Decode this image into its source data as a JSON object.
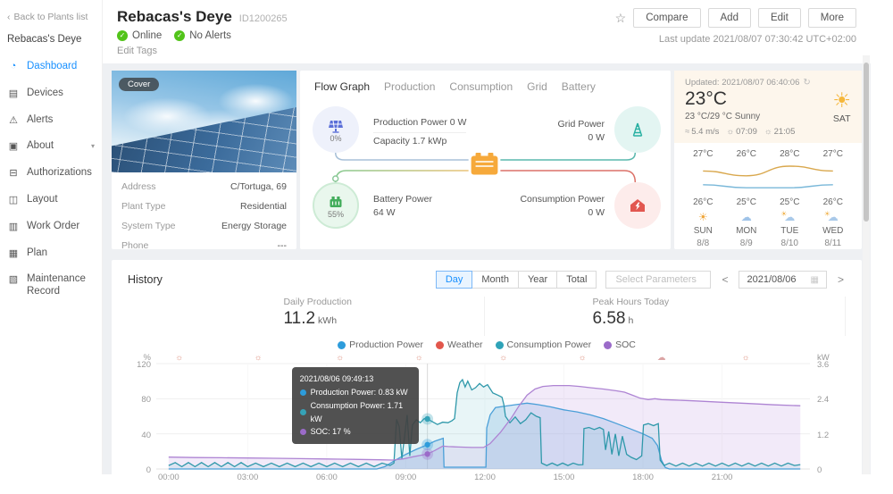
{
  "sidebar": {
    "back": "Back to Plants list",
    "plant_name": "Rebacas's Deye",
    "items": [
      {
        "label": "Dashboard",
        "icon": "dashboard-icon",
        "glyph": "◔",
        "active": true
      },
      {
        "label": "Devices",
        "icon": "devices-icon",
        "glyph": "▤"
      },
      {
        "label": "Alerts",
        "icon": "alerts-icon",
        "glyph": "⚠"
      },
      {
        "label": "About",
        "icon": "about-icon",
        "glyph": "▣",
        "caret": true
      },
      {
        "label": "Authorizations",
        "icon": "authorizations-icon",
        "glyph": "⊟"
      },
      {
        "label": "Layout",
        "icon": "layout-icon",
        "glyph": "◫"
      },
      {
        "label": "Work Order",
        "icon": "work-order-icon",
        "glyph": "▥"
      },
      {
        "label": "Plan",
        "icon": "plan-icon",
        "glyph": "▦"
      },
      {
        "label": "Maintenance Record",
        "icon": "maintenance-record-icon",
        "glyph": "▧"
      }
    ]
  },
  "header": {
    "title": "Rebacas's Deye",
    "id": "ID1200265",
    "status": [
      "Online",
      "No Alerts"
    ],
    "edit_tags": "Edit Tags",
    "buttons": [
      "Compare",
      "Add",
      "Edit",
      "More"
    ],
    "last_update": "Last update 2021/08/07 07:30:42 UTC+02:00"
  },
  "info_card": {
    "cover_badge": "Cover",
    "rows": [
      {
        "label": "Address",
        "value": "C/Tortuga, 69"
      },
      {
        "label": "Plant Type",
        "value": "Residential"
      },
      {
        "label": "System Type",
        "value": "Energy Storage"
      },
      {
        "label": "Phone",
        "value": "---"
      }
    ]
  },
  "flow": {
    "tabs": [
      {
        "label": "Flow Graph",
        "active": true
      },
      {
        "label": "Production"
      },
      {
        "label": "Consumption"
      },
      {
        "label": "Grid"
      },
      {
        "label": "Battery"
      }
    ],
    "production": {
      "line1": "Production Power 0 W",
      "line2": "Capacity 1.7 kWp",
      "percent": "0%"
    },
    "grid": {
      "label": "Grid Power",
      "value": "0 W"
    },
    "battery": {
      "label": "Battery Power",
      "value": "64 W",
      "percent": "55%"
    },
    "consumption": {
      "label": "Consumption Power",
      "value": "0 W"
    }
  },
  "weather": {
    "updated": "Updated: 2021/08/07 06:40:06",
    "temp": "23°C",
    "range": "23 °C/29 °C Sunny",
    "day": "SAT",
    "wind": "5.4 m/s",
    "sunrise": "07:09",
    "sunset": "21:05",
    "forecast": [
      {
        "high": "27°C",
        "low": "26°C",
        "day": "SUN",
        "date": "8/8",
        "icon": "sun"
      },
      {
        "high": "26°C",
        "low": "25°C",
        "day": "MON",
        "date": "8/9",
        "icon": "rain"
      },
      {
        "high": "28°C",
        "low": "25°C",
        "day": "TUE",
        "date": "8/10",
        "icon": "partly-cloudy"
      },
      {
        "high": "27°C",
        "low": "26°C",
        "day": "WED",
        "date": "8/11",
        "icon": "partly-cloudy"
      }
    ],
    "curve_high": [
      27,
      26,
      28,
      27
    ],
    "curve_low": [
      26,
      25,
      25,
      26
    ]
  },
  "history": {
    "title": "History",
    "range_tabs": [
      {
        "label": "Day",
        "active": true
      },
      {
        "label": "Month"
      },
      {
        "label": "Year"
      },
      {
        "label": "Total"
      }
    ],
    "select_parameters": "Select Parameters",
    "date": "2021/08/06",
    "stats": [
      {
        "label": "Daily Production",
        "value": "11.2",
        "unit": "kWh"
      },
      {
        "label": "Peak Hours Today",
        "value": "6.58",
        "unit": "h"
      }
    ],
    "legend": [
      {
        "label": "Production Power",
        "color": "#2D9CDB"
      },
      {
        "label": "Weather",
        "color": "#E2574C"
      },
      {
        "label": "Consumption Power",
        "color": "#2FA3B8"
      },
      {
        "label": "SOC",
        "color": "#9B6BC9"
      }
    ]
  },
  "chart_data": {
    "type": "line",
    "title": "History - Day view 2021/08/06",
    "xticks": [
      "00:00",
      "03:00",
      "06:00",
      "09:00",
      "12:00",
      "15:00",
      "18:00",
      "21:00"
    ],
    "xtick_hours": [
      0,
      3,
      6,
      9,
      12,
      15,
      18,
      21
    ],
    "left_axis": {
      "label": "%",
      "ticks": [
        120,
        80,
        40,
        0
      ],
      "max": 120
    },
    "right_axis": {
      "label": "kW",
      "ticks": [
        "3.6",
        "2.4",
        "1.2",
        "0"
      ],
      "max": 3.6
    },
    "weather_icons": [
      {
        "t": 0.4,
        "type": "sun"
      },
      {
        "t": 3.4,
        "type": "sun"
      },
      {
        "t": 6.5,
        "type": "sun"
      },
      {
        "t": 9.5,
        "type": "sun"
      },
      {
        "t": 12.7,
        "type": "sun"
      },
      {
        "t": 15.7,
        "type": "sun"
      },
      {
        "t": 18.7,
        "type": "cloud"
      },
      {
        "t": 21.9,
        "type": "sun"
      }
    ],
    "series": [
      {
        "name": "Production Power",
        "unit": "kW",
        "axis": "right",
        "color": "#4A9FD8",
        "fill": "rgba(120,175,225,0.28)",
        "points": [
          [
            0,
            0
          ],
          [
            7.9,
            0
          ],
          [
            8.2,
            0.08
          ],
          [
            8.6,
            0.3
          ],
          [
            9,
            0.5
          ],
          [
            9.4,
            0.67
          ],
          [
            9.82,
            0.83
          ],
          [
            10.1,
            0.95
          ],
          [
            10.42,
            1.05
          ],
          [
            10.45,
            0.06
          ],
          [
            11.5,
            0.06
          ],
          [
            12.04,
            0.06
          ],
          [
            12.07,
            1.4
          ],
          [
            12.2,
            1.85
          ],
          [
            12.4,
            2.1
          ],
          [
            12.8,
            2.15
          ],
          [
            13.2,
            2.2
          ],
          [
            13.6,
            2.25
          ],
          [
            14,
            2.2
          ],
          [
            14.5,
            2.12
          ],
          [
            15,
            2.02
          ],
          [
            15.5,
            1.95
          ],
          [
            16,
            1.85
          ],
          [
            16.5,
            1.72
          ],
          [
            17,
            1.55
          ],
          [
            17.5,
            1.38
          ],
          [
            18,
            1.2
          ],
          [
            18.35,
            1.05
          ],
          [
            18.55,
            0.8
          ],
          [
            18.7,
            0.3
          ],
          [
            18.85,
            0.05
          ],
          [
            19,
            0
          ],
          [
            23.97,
            0
          ]
        ]
      },
      {
        "name": "Consumption Power",
        "unit": "kW",
        "axis": "right",
        "color": "#2E98AA",
        "fill": "rgba(110,190,205,0.16)",
        "points": [
          [
            0,
            0.12
          ],
          [
            0.25,
            0.22
          ],
          [
            0.5,
            0.08
          ],
          [
            0.75,
            0.22
          ],
          [
            1,
            0.08
          ],
          [
            1.25,
            0.22
          ],
          [
            1.5,
            0.08
          ],
          [
            1.75,
            0.22
          ],
          [
            2,
            0.08
          ],
          [
            2.25,
            0.22
          ],
          [
            2.5,
            0.08
          ],
          [
            2.75,
            0.22
          ],
          [
            3,
            0.08
          ],
          [
            3.3,
            0.2
          ],
          [
            3.6,
            0.08
          ],
          [
            3.9,
            0.2
          ],
          [
            4.2,
            0.08
          ],
          [
            4.5,
            0.2
          ],
          [
            4.8,
            0.08
          ],
          [
            5.1,
            0.2
          ],
          [
            5.4,
            0.08
          ],
          [
            5.7,
            0.2
          ],
          [
            6,
            0.08
          ],
          [
            6.3,
            0.2
          ],
          [
            6.6,
            0.08
          ],
          [
            6.9,
            0.2
          ],
          [
            7.2,
            0.08
          ],
          [
            7.5,
            0.2
          ],
          [
            7.8,
            0.08
          ],
          [
            8.1,
            0.2
          ],
          [
            8.4,
            0.12
          ],
          [
            8.55,
            0.2
          ],
          [
            8.65,
            1.7
          ],
          [
            8.75,
            1.45
          ],
          [
            8.85,
            0.35
          ],
          [
            8.95,
            1.1
          ],
          [
            9.05,
            1.85
          ],
          [
            9.15,
            0.45
          ],
          [
            9.25,
            1.5
          ],
          [
            9.4,
            1.68
          ],
          [
            9.55,
            1.58
          ],
          [
            9.7,
            1.72
          ],
          [
            9.82,
            1.71
          ],
          [
            10,
            1.62
          ],
          [
            10.2,
            1.52
          ],
          [
            10.4,
            1.6
          ],
          [
            10.6,
            1.58
          ],
          [
            10.75,
            1.65
          ],
          [
            10.85,
            1.72
          ],
          [
            10.95,
            2.6
          ],
          [
            11.05,
            2.95
          ],
          [
            11.15,
            3.05
          ],
          [
            11.25,
            2.8
          ],
          [
            11.35,
            3
          ],
          [
            11.5,
            2.7
          ],
          [
            11.65,
            2.78
          ],
          [
            11.8,
            2.92
          ],
          [
            11.95,
            2.8
          ],
          [
            12.1,
            2.88
          ],
          [
            12.3,
            2.6
          ],
          [
            12.5,
            2.52
          ],
          [
            12.65,
            2.45
          ],
          [
            12.72,
            2.2
          ],
          [
            12.78,
            1.8
          ],
          [
            12.95,
            1.58
          ],
          [
            13.15,
            1.78
          ],
          [
            13.35,
            1.55
          ],
          [
            13.55,
            1.68
          ],
          [
            13.75,
            1.92
          ],
          [
            13.95,
            1.8
          ],
          [
            14.1,
            1.75
          ],
          [
            14.15,
            0.2
          ],
          [
            14.35,
            0.12
          ],
          [
            14.55,
            0.2
          ],
          [
            14.75,
            0.12
          ],
          [
            14.95,
            0.2
          ],
          [
            15.15,
            0.12
          ],
          [
            15.35,
            0.2
          ],
          [
            15.55,
            0.14
          ],
          [
            15.72,
            0.15
          ],
          [
            15.76,
            1.38
          ],
          [
            15.95,
            1.42
          ],
          [
            16.15,
            1.35
          ],
          [
            16.35,
            1.42
          ],
          [
            16.5,
            1.35
          ],
          [
            16.58,
            0.65
          ],
          [
            16.7,
            1.28
          ],
          [
            16.82,
            0.5
          ],
          [
            16.95,
            1.2
          ],
          [
            17.08,
            0.45
          ],
          [
            17.22,
            1.12
          ],
          [
            17.38,
            0.5
          ],
          [
            17.55,
            0.4
          ],
          [
            17.75,
            0.32
          ],
          [
            17.95,
            0.45
          ],
          [
            18.02,
            1.5
          ],
          [
            18.2,
            1.55
          ],
          [
            18.4,
            1.48
          ],
          [
            18.58,
            1.55
          ],
          [
            18.65,
            0.3
          ],
          [
            18.8,
            0.12
          ],
          [
            19,
            0.2
          ],
          [
            19.25,
            0.1
          ],
          [
            19.5,
            0.2
          ],
          [
            19.75,
            0.1
          ],
          [
            20,
            0.2
          ],
          [
            20.25,
            0.1
          ],
          [
            20.5,
            0.2
          ],
          [
            20.75,
            0.1
          ],
          [
            21,
            0.2
          ],
          [
            21.25,
            0.1
          ],
          [
            21.5,
            0.2
          ],
          [
            21.75,
            0.1
          ],
          [
            22,
            0.2
          ],
          [
            22.25,
            0.1
          ],
          [
            22.5,
            0.2
          ],
          [
            22.75,
            0.1
          ],
          [
            23,
            0.2
          ],
          [
            23.25,
            0.1
          ],
          [
            23.5,
            0.2
          ],
          [
            23.75,
            0.12
          ],
          [
            23.97,
            0.15
          ]
        ]
      },
      {
        "name": "SOC",
        "unit": "%",
        "axis": "left",
        "color": "#AE84D3",
        "fill": "rgba(190,150,225,0.20)",
        "points": [
          [
            0,
            13.5
          ],
          [
            1,
            13
          ],
          [
            2,
            12.8
          ],
          [
            3,
            12.5
          ],
          [
            4,
            12.2
          ],
          [
            5,
            11.8
          ],
          [
            6,
            11.4
          ],
          [
            7,
            11
          ],
          [
            8,
            10.5
          ],
          [
            8.5,
            10.2
          ],
          [
            8.9,
            11.5
          ],
          [
            9.3,
            14
          ],
          [
            9.82,
            17
          ],
          [
            10.1,
            21
          ],
          [
            10.4,
            26
          ],
          [
            10.6,
            25.5
          ],
          [
            11,
            25
          ],
          [
            11.5,
            24.5
          ],
          [
            11.95,
            24.5
          ],
          [
            12.2,
            29
          ],
          [
            12.6,
            42
          ],
          [
            13,
            58
          ],
          [
            13.3,
            72
          ],
          [
            13.6,
            84
          ],
          [
            13.9,
            91
          ],
          [
            14.2,
            94
          ],
          [
            14.6,
            95
          ],
          [
            15.2,
            95
          ],
          [
            15.6,
            94
          ],
          [
            16,
            92.5
          ],
          [
            16.5,
            91
          ],
          [
            17,
            89
          ],
          [
            17.3,
            87.5
          ],
          [
            17.6,
            84
          ],
          [
            17.9,
            80.5
          ],
          [
            18.2,
            79
          ],
          [
            18.45,
            80
          ],
          [
            18.7,
            79
          ],
          [
            19.2,
            78.5
          ],
          [
            20,
            77.5
          ],
          [
            21,
            76
          ],
          [
            22,
            74.5
          ],
          [
            23,
            73
          ],
          [
            23.97,
            72
          ]
        ]
      }
    ],
    "hover": {
      "t": 9.82,
      "time": "2021/08/06 09:49:13",
      "rows": [
        {
          "label": "Production Power",
          "value": "0.83 kW",
          "color": "#2D9CDB",
          "kw": 0.83
        },
        {
          "label": "Consumption Power",
          "value": "1.71 kW",
          "color": "#35A3B8",
          "kw": 1.71
        },
        {
          "label": "SOC",
          "value": "17 %",
          "color": "#9B6BC9",
          "pct": 17
        }
      ]
    }
  }
}
